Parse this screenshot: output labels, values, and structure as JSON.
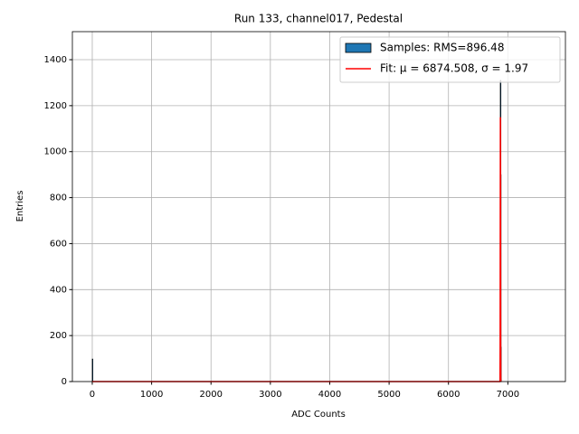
{
  "chart_data": {
    "type": "histogram",
    "title": "Run 133, channel017, Pedestal",
    "xlabel": "ADC Counts",
    "ylabel": "Entries",
    "bins": [
      -1,
      1,
      6866,
      6868,
      6870,
      6872,
      6874,
      6876,
      6878,
      6880,
      6882,
      6884
    ],
    "series": [
      {
        "name": "Samples: RMS=896.48",
        "color": "#1f77b4",
        "edgecolor": "#000000",
        "values": [
          98,
          0,
          2,
          60,
          450,
          1310,
          900,
          150,
          10,
          1,
          0
        ]
      },
      {
        "name": "Fit: μ = 6874.508, σ = 1.97",
        "color": "#ff0000",
        "type": "line",
        "x": [
          0,
          6866,
          6868.5,
          6870.5,
          6872.5,
          6874.5,
          6876.5,
          6878.5,
          6880.5,
          6883
        ],
        "values": [
          0,
          0,
          5,
          156,
          687,
          1150,
          686,
          156,
          11,
          0
        ]
      }
    ],
    "xlim": [
      -335,
      7970
    ],
    "ylim": [
      0,
      1522
    ],
    "xticks": [
      0,
      1000,
      2000,
      3000,
      4000,
      5000,
      6000,
      7000
    ],
    "yticks": [
      0,
      200,
      400,
      600,
      800,
      1000,
      1200,
      1400
    ],
    "grid": true,
    "legend": "upper right"
  }
}
